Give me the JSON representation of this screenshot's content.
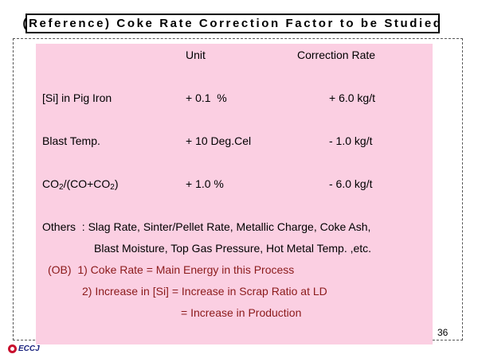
{
  "slide": {
    "title": "(Reference) Coke Rate Correction Factor to be Studied",
    "page_number": "36",
    "logo_text": "ECCJ"
  },
  "table": {
    "header_unit": "Unit",
    "header_rate": "Correction Rate",
    "rows": [
      {
        "item": "[Si] in Pig Iron",
        "unit": "+ 0.1  %",
        "rate": "+ 6.0 kg/t"
      },
      {
        "item": "Blast Temp.",
        "unit": "+ 10 Deg.Cel",
        "rate": "- 1.0 kg/t"
      },
      {
        "item_part1": "CO",
        "item_sub1": "2",
        "item_part2": "/(CO+CO",
        "item_sub2": "2",
        "item_part3": ")",
        "unit": "+ 1.0 %",
        "rate": "- 6.0 kg/t"
      }
    ]
  },
  "others": {
    "line1": "Others  : Slag Rate, Sinter/Pellet Rate, Metallic Charge, Coke Ash,",
    "line2": "Blast Moisture, Top Gas Pressure, Hot Metal Temp. ,etc."
  },
  "notes": {
    "line1": "(OB)  1) Coke Rate = Main Energy in this Process",
    "line2": "2) Increase in [Si] = Increase in Scrap Ratio at LD",
    "line3": "= Increase in Production"
  },
  "colors": {
    "panel": "#fbcfe2",
    "note_text": "#8b1a1a",
    "logo_mark": "#c8102e"
  }
}
